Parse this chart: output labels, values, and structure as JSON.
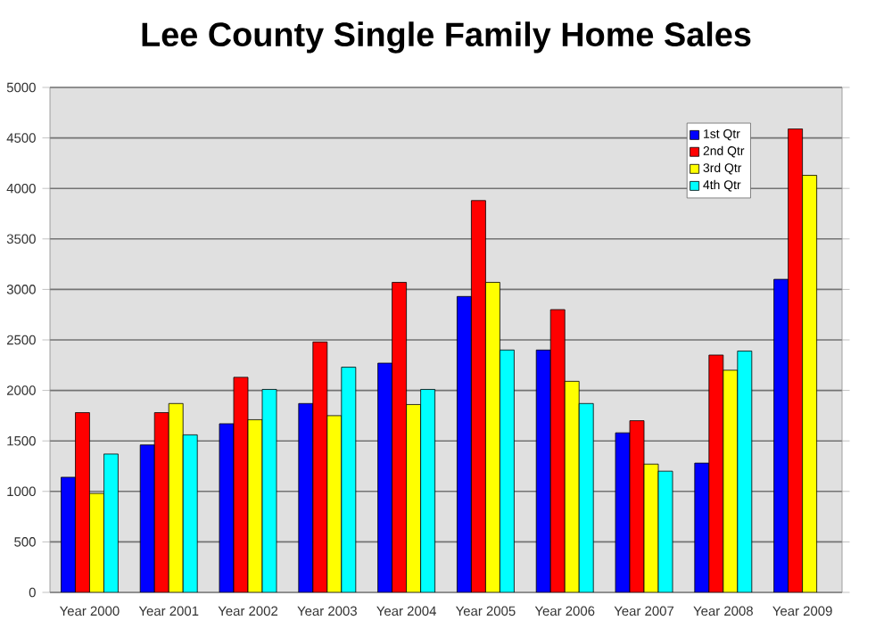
{
  "chart_data": {
    "type": "bar",
    "title": "Lee County Single Family Home Sales",
    "categories": [
      "Year 2000",
      "Year 2001",
      "Year 2002",
      "Year 2003",
      "Year 2004",
      "Year 2005",
      "Year 2006",
      "Year 2007",
      "Year 2008",
      "Year 2009"
    ],
    "series": [
      {
        "name": "1st Qtr",
        "color": "#0000ff",
        "values": [
          1140,
          1460,
          1670,
          1870,
          2270,
          2930,
          2400,
          1580,
          1280,
          3100
        ]
      },
      {
        "name": "2nd Qtr",
        "color": "#ff0000",
        "values": [
          1780,
          1780,
          2130,
          2480,
          3070,
          3880,
          2800,
          1700,
          2350,
          4590
        ]
      },
      {
        "name": "3rd Qtr",
        "color": "#ffff00",
        "values": [
          980,
          1870,
          1710,
          1750,
          1860,
          3070,
          2090,
          1270,
          2200,
          4130
        ]
      },
      {
        "name": "4th Qtr",
        "color": "#00ffff",
        "values": [
          1370,
          1560,
          2010,
          2230,
          2010,
          2400,
          1870,
          1200,
          2390,
          null
        ]
      }
    ],
    "ylim": [
      0,
      5000
    ],
    "yticks": [
      0,
      500,
      1000,
      1500,
      2000,
      2500,
      3000,
      3500,
      4000,
      4500,
      5000
    ],
    "grid": "y",
    "legend": "top right"
  }
}
